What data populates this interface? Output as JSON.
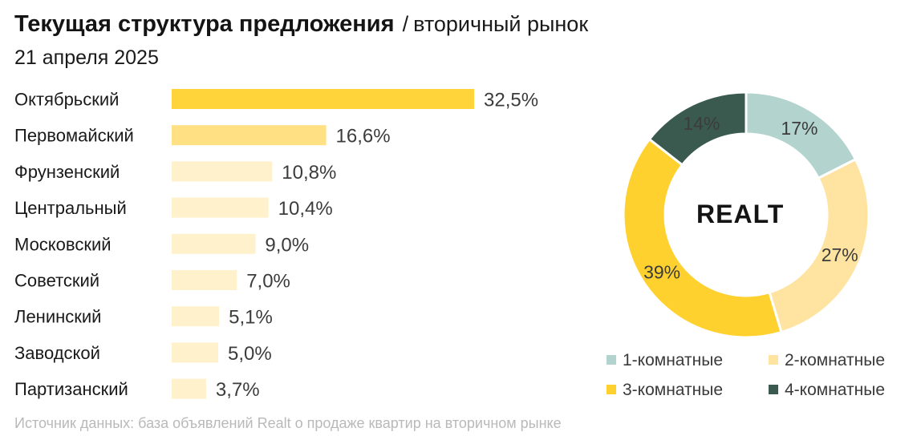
{
  "header": {
    "title": "Текущая структура предложения",
    "slash": "/",
    "subtitle": "вторичный рынок",
    "date": "21 апреля 2025"
  },
  "source": "Источник данных: база объявлений Realt о продаже квартир на вторичном рынке",
  "logo": "REALT",
  "chart_data": [
    {
      "type": "bar",
      "orientation": "horizontal",
      "categories": [
        "Октябрьский",
        "Первомайский",
        "Фрунзенский",
        "Центральный",
        "Московский",
        "Советский",
        "Ленинский",
        "Заводской",
        "Партизанский"
      ],
      "values": [
        32.5,
        16.6,
        10.8,
        10.4,
        9.0,
        7.0,
        5.1,
        5.0,
        3.7
      ],
      "labels": [
        "32,5%",
        "16,6%",
        "10,8%",
        "10,4%",
        "9,0%",
        "7,0%",
        "5,1%",
        "5,0%",
        "3,7%"
      ],
      "colors": [
        "#ffd43b",
        "#ffe083",
        "#fff1cc",
        "#fff1cc",
        "#fff1cc",
        "#fff1cc",
        "#fff1cc",
        "#fff1cc",
        "#fff1cc"
      ],
      "unit": "%"
    },
    {
      "type": "pie",
      "donut": true,
      "categories": [
        "1-комнатные",
        "2-комнатные",
        "3-комнатные",
        "4-комнатные"
      ],
      "values": [
        17,
        27,
        39,
        14
      ],
      "labels": [
        "17%",
        "27%",
        "39%",
        "14%"
      ],
      "colors": [
        "#b2d3ce",
        "#ffe3a0",
        "#ffd12f",
        "#3a5a50"
      ],
      "center_label": "REALT",
      "legend_position": "bottom-right"
    }
  ]
}
